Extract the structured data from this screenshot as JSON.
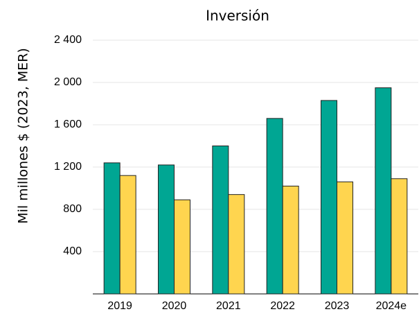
{
  "chart_data": {
    "type": "bar",
    "title": "Inversión",
    "y_label": "Mil millones $ (2023, MER)",
    "categories": [
      "2019",
      "2020",
      "2021",
      "2022",
      "2023",
      "2024e"
    ],
    "series": [
      {
        "color": "#00a693",
        "values": [
          1240,
          1220,
          1400,
          1660,
          1830,
          1950
        ]
      },
      {
        "color": "#ffd54f",
        "values": [
          1120,
          890,
          940,
          1020,
          1060,
          1090
        ]
      }
    ],
    "ylim": [
      0,
      2400
    ],
    "yticks": [
      400,
      800,
      {
        "value": 1200,
        "label": "1 200"
      },
      {
        "value": 1600,
        "label": "1 600"
      },
      {
        "value": 2000,
        "label": "2 000"
      },
      {
        "value": 2400,
        "label": "2 400"
      }
    ],
    "grid": true
  }
}
